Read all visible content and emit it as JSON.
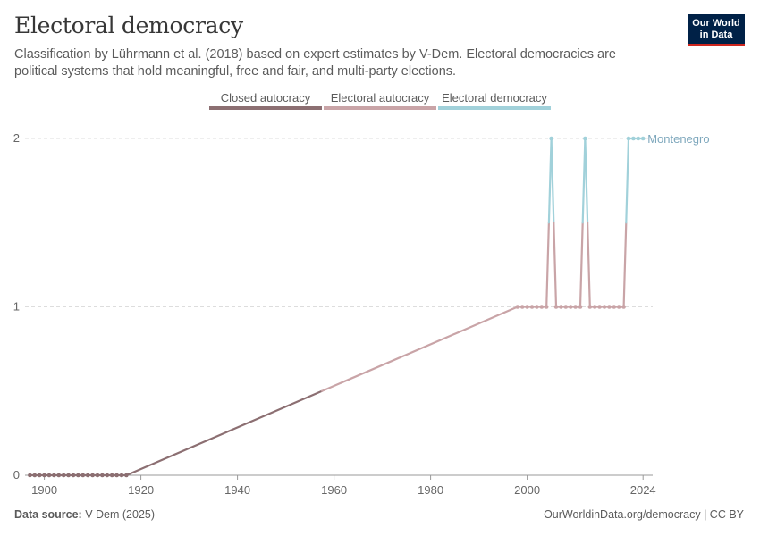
{
  "header": {
    "title": "Electoral democracy",
    "subtitle": "Classification by Lührmann et al. (2018) based on expert estimates by V-Dem. Electoral democracies are political systems that hold meaningful, free and fair, and multi-party elections."
  },
  "logo": {
    "line1": "Our World",
    "line2": "in Data"
  },
  "legend": [
    {
      "label": "Closed autocracy",
      "color": "#8c6f72"
    },
    {
      "label": "Electoral autocracy",
      "color": "#c9a4a7"
    },
    {
      "label": "Electoral democracy",
      "color": "#a1d1da"
    }
  ],
  "footer": {
    "source_label": "Data source:",
    "source_value": "V-Dem (2025)",
    "link": "OurWorldinData.org/democracy | CC BY"
  },
  "chart_data": {
    "type": "line",
    "xlim": [
      1896,
      2026
    ],
    "ylim": [
      0,
      2
    ],
    "x_ticks": [
      1900,
      1920,
      1940,
      1960,
      1980,
      2000,
      2024
    ],
    "y_ticks": [
      0,
      1,
      2
    ],
    "grid": true,
    "series": [
      {
        "name": "Montenegro",
        "points": [
          [
            1897,
            0
          ],
          [
            1898,
            0
          ],
          [
            1899,
            0
          ],
          [
            1900,
            0
          ],
          [
            1901,
            0
          ],
          [
            1902,
            0
          ],
          [
            1903,
            0
          ],
          [
            1904,
            0
          ],
          [
            1905,
            0
          ],
          [
            1906,
            0
          ],
          [
            1907,
            0
          ],
          [
            1908,
            0
          ],
          [
            1909,
            0
          ],
          [
            1910,
            0
          ],
          [
            1911,
            0
          ],
          [
            1912,
            0
          ],
          [
            1913,
            0
          ],
          [
            1914,
            0
          ],
          [
            1915,
            0
          ],
          [
            1916,
            0
          ],
          [
            1917,
            0
          ],
          [
            1998,
            1
          ],
          [
            1999,
            1
          ],
          [
            2000,
            1
          ],
          [
            2001,
            1
          ],
          [
            2002,
            1
          ],
          [
            2003,
            1
          ],
          [
            2004,
            1
          ],
          [
            2005,
            2
          ],
          [
            2006,
            1
          ],
          [
            2007,
            1
          ],
          [
            2008,
            1
          ],
          [
            2009,
            1
          ],
          [
            2010,
            1
          ],
          [
            2011,
            1
          ],
          [
            2012,
            2
          ],
          [
            2013,
            1
          ],
          [
            2014,
            1
          ],
          [
            2015,
            1
          ],
          [
            2016,
            1
          ],
          [
            2017,
            1
          ],
          [
            2018,
            1
          ],
          [
            2019,
            1
          ],
          [
            2020,
            1
          ],
          [
            2021,
            2
          ],
          [
            2022,
            2
          ],
          [
            2023,
            2
          ],
          [
            2024,
            2
          ]
        ]
      }
    ]
  }
}
